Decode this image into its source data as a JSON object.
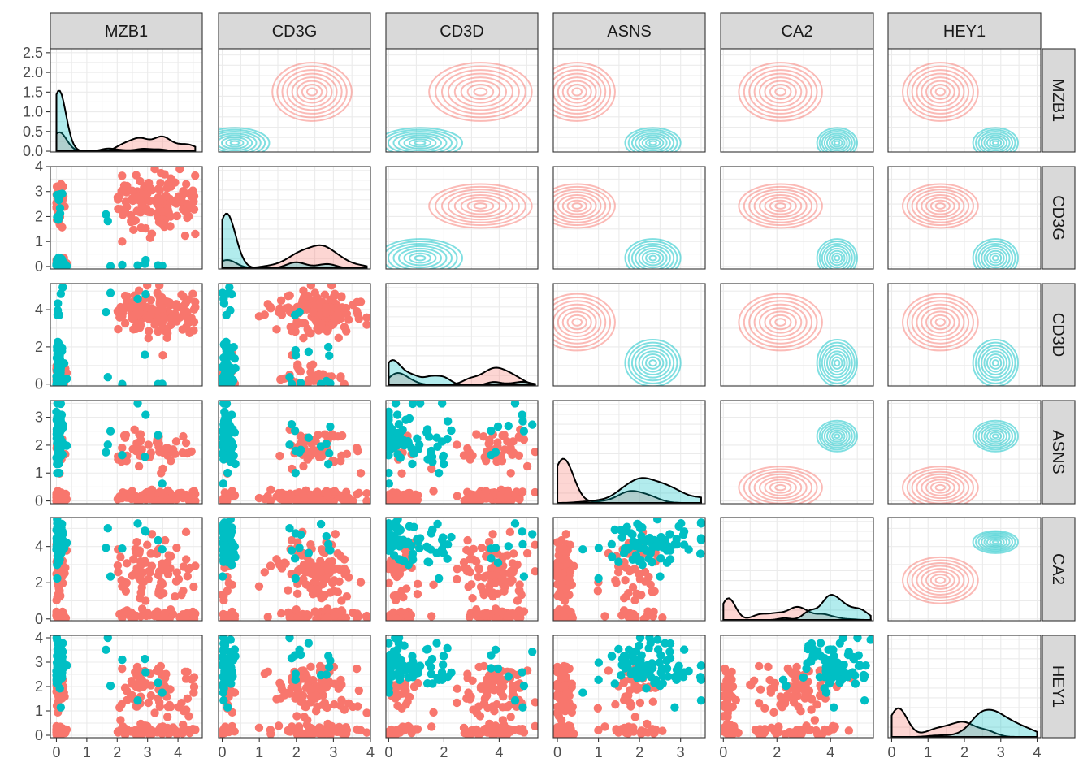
{
  "chart_data": {
    "type": "scatter",
    "subtype": "pairs-plot",
    "variables": [
      "MZB1",
      "CD3G",
      "CD3D",
      "ASNS",
      "CA2",
      "HEY1"
    ],
    "groups": [
      {
        "color": "#F8766D"
      },
      {
        "color": "#00BFC4"
      }
    ],
    "axes": {
      "MZB1": {
        "range": [
          -0.2,
          4.8
        ],
        "ticks": [
          0,
          1,
          2,
          3,
          4
        ],
        "tick_labels": [
          "0",
          "1",
          "2",
          "3",
          "4"
        ]
      },
      "CD3G": {
        "range": [
          -0.1,
          4.0
        ],
        "ticks": [
          0,
          1,
          2,
          3,
          4
        ],
        "tick_labels": [
          "0",
          "1",
          "2",
          "3",
          "4"
        ]
      },
      "CD3D": {
        "range": [
          -0.1,
          5.4
        ],
        "ticks": [
          0,
          2,
          4
        ],
        "tick_labels": [
          "0",
          "2",
          "4"
        ]
      },
      "ASNS": {
        "range": [
          -0.1,
          3.6
        ],
        "ticks": [
          0,
          1,
          2,
          3
        ],
        "tick_labels": [
          "0",
          "1",
          "2",
          "3"
        ]
      },
      "CA2": {
        "range": [
          -0.1,
          5.6
        ],
        "ticks": [
          0,
          2,
          4
        ],
        "tick_labels": [
          "0",
          "2",
          "4"
        ]
      },
      "HEY1": {
        "range": [
          -0.1,
          4.1
        ],
        "ticks": [
          0,
          1,
          2,
          3,
          4
        ],
        "tick_labels": [
          "0",
          "1",
          "2",
          "3",
          "4"
        ]
      }
    },
    "density_axis": {
      "range": [
        -0.02,
        2.6
      ],
      "ticks": [
        0,
        0.5,
        1.0,
        1.5,
        2.0,
        2.5
      ],
      "tick_labels": [
        "0.0",
        "0.5",
        "1.0",
        "1.5",
        "2.0",
        "2.5"
      ]
    },
    "diagonal": "density",
    "lower": "points",
    "upper": "density2d",
    "grid": true,
    "legend": "none"
  }
}
